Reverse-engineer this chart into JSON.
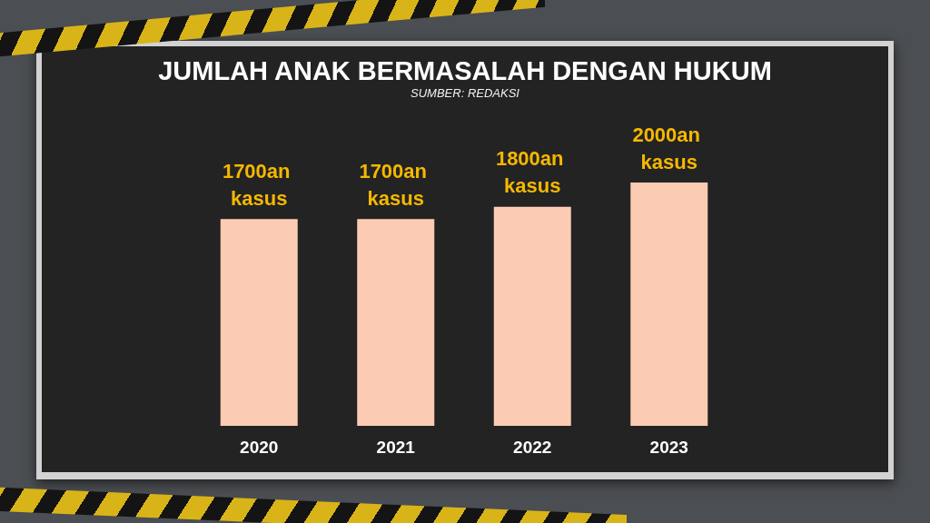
{
  "chart_data": {
    "type": "bar",
    "title": "JUMLAH ANAK BERMASALAH DENGAN HUKUM",
    "subtitle": "SUMBER: REDAKSI",
    "categories": [
      "2020",
      "2021",
      "2022",
      "2023"
    ],
    "values": [
      1700,
      1700,
      1800,
      2000
    ],
    "value_labels": [
      "1700an kasus",
      "1700an kasus",
      "1800an kasus",
      "2000an kasus"
    ],
    "color": "#fccbb3",
    "tick_labels": "x"
  }
}
